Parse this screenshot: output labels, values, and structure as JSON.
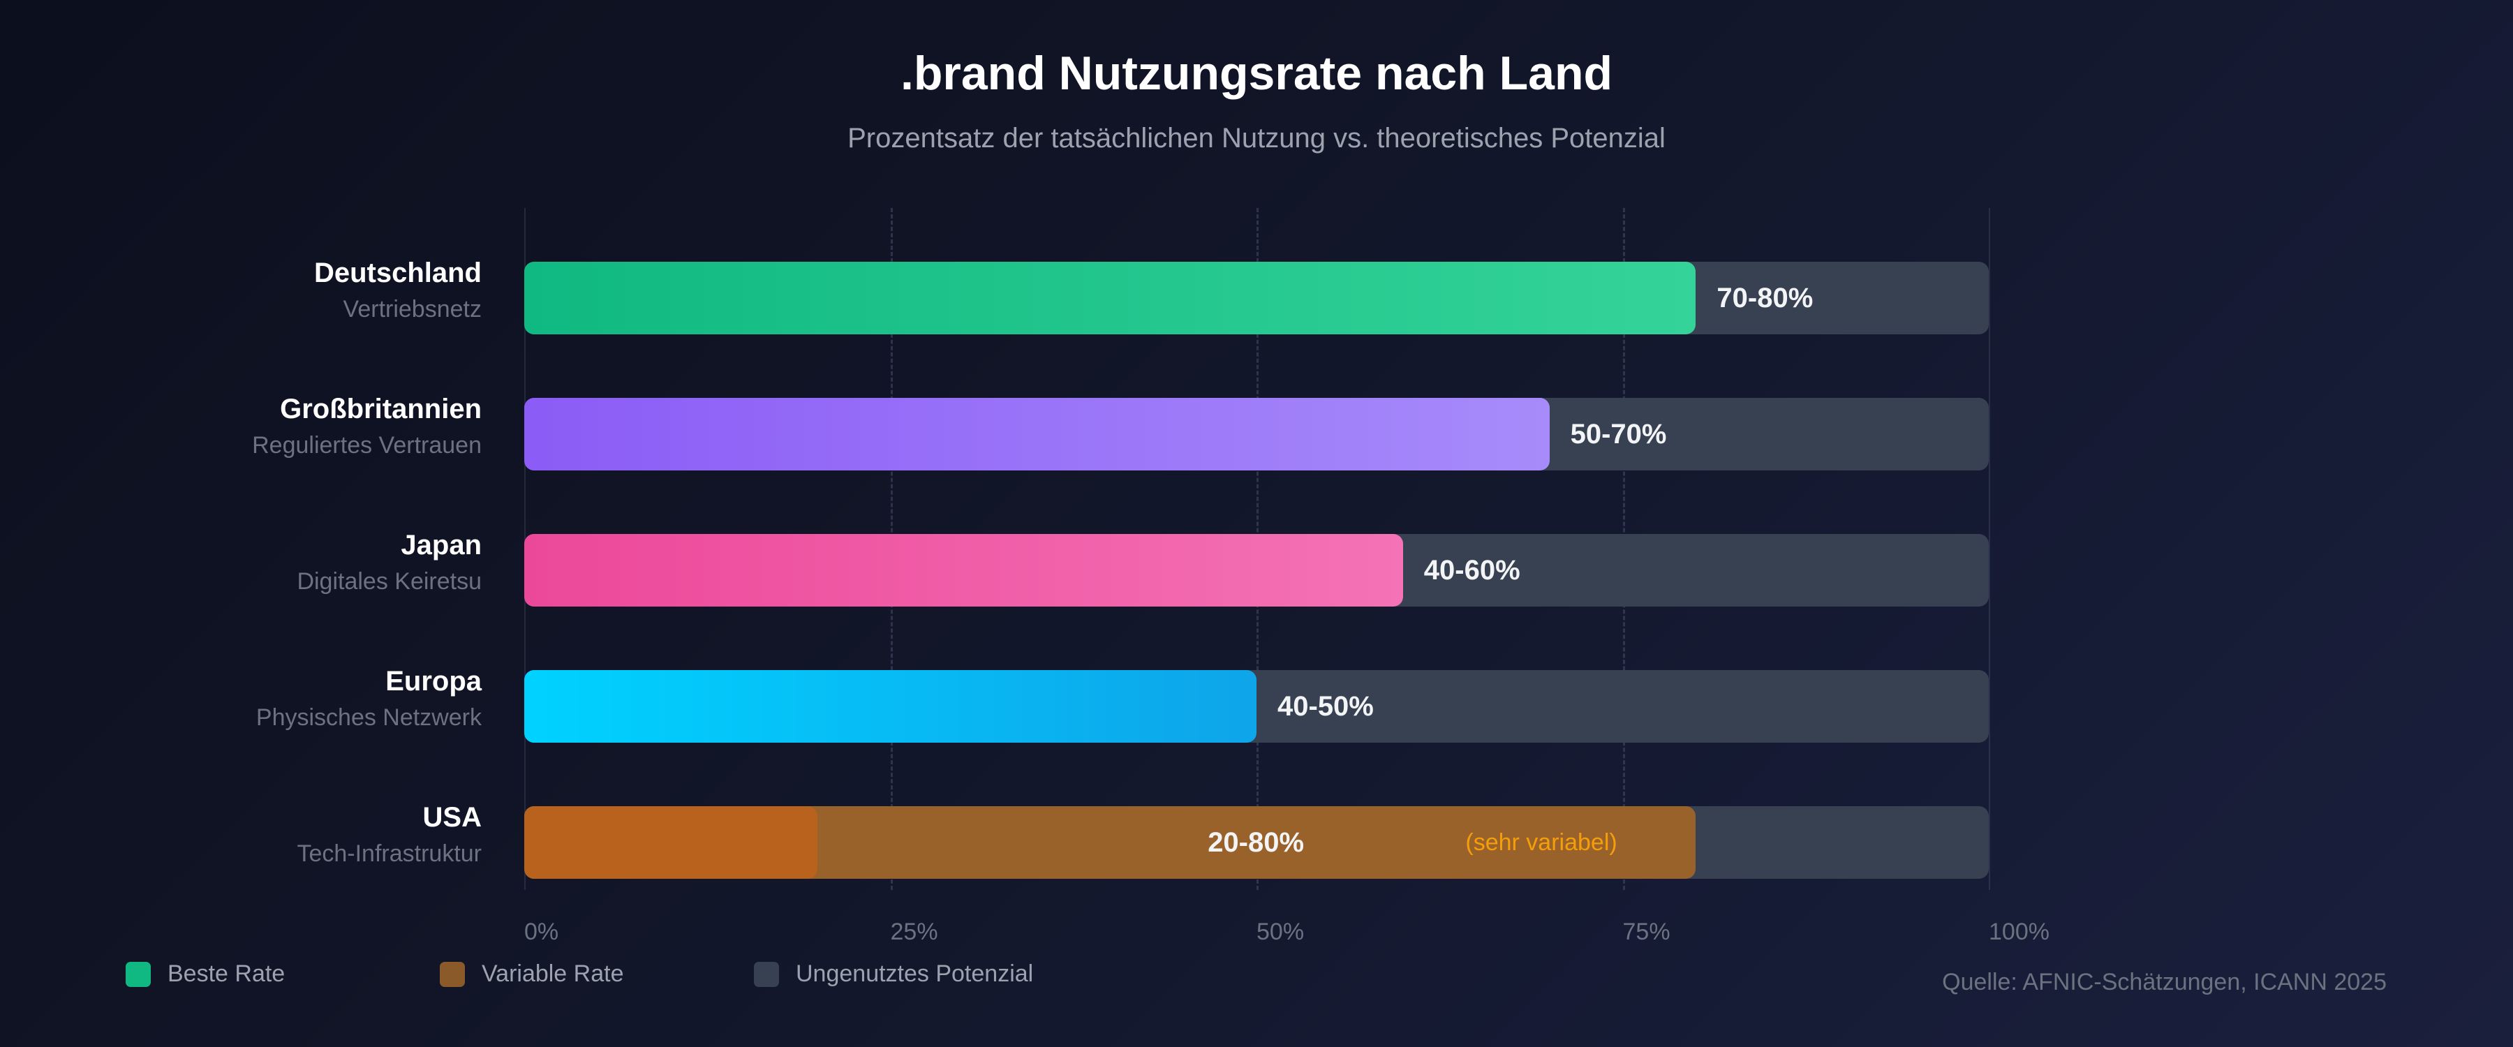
{
  "header": {
    "title": ".brand Nutzungsrate nach Land",
    "subtitle": "Prozentsatz der tatsächlichen Nutzung vs. theoretisches Potenzial"
  },
  "chart_data": {
    "type": "bar",
    "orientation": "horizontal",
    "xlim": [
      0,
      100
    ],
    "ticks": [
      "0%",
      "25%",
      "50%",
      "75%",
      "100%"
    ],
    "grid": true,
    "categories": [
      {
        "name": "Deutschland",
        "sub": "Vertriebsnetz",
        "value": 80,
        "label": "70-80%",
        "color_from": "#10b981",
        "color_to": "#34d399"
      },
      {
        "name": "Großbritannien",
        "sub": "Reguliertes Vertrauen",
        "value": 70,
        "label": "50-70%",
        "color_from": "#8b5cf6",
        "color_to": "#a78bfa"
      },
      {
        "name": "Japan",
        "sub": "Digitales Keiretsu",
        "value": 60,
        "label": "40-60%",
        "color_from": "#ec4899",
        "color_to": "#f472b6"
      },
      {
        "name": "Europa",
        "sub": "Physisches Netzwerk",
        "value": 50,
        "label": "40-50%",
        "color_from": "#00d2ff",
        "color_to": "#0ea5e9"
      },
      {
        "name": "USA",
        "sub": "Tech-Infrastruktur",
        "value_low": 20,
        "value": 80,
        "label": "20-80%",
        "note": "(sehr variabel)",
        "color_from": "#b8621d",
        "color_to": "#99622a"
      }
    ],
    "track_color": "#374151",
    "legend_position": "bottom-left"
  },
  "legend": [
    {
      "label": "Beste Rate",
      "color": "#10b981"
    },
    {
      "label": "Variable Rate",
      "color": "#8b5a2b"
    },
    {
      "label": "Ungenutztes Potenzial",
      "color": "#374151"
    }
  ],
  "source": "Quelle: AFNIC-Schätzungen, ICANN 2025"
}
